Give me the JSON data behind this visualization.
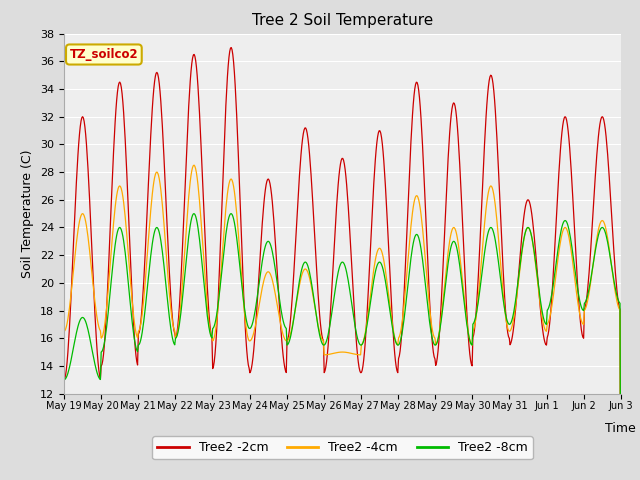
{
  "title": "Tree 2 Soil Temperature",
  "xlabel": "Time",
  "ylabel": "Soil Temperature (C)",
  "ylim": [
    12,
    38
  ],
  "yticks": [
    12,
    14,
    16,
    18,
    20,
    22,
    24,
    26,
    28,
    30,
    32,
    34,
    36,
    38
  ],
  "legend_label": "TZ_soilco2",
  "series_labels": [
    "Tree2 -2cm",
    "Tree2 -4cm",
    "Tree2 -8cm"
  ],
  "series_colors": [
    "#cc0000",
    "#ffaa00",
    "#00bb00"
  ],
  "background_color": "#dddddd",
  "plot_bg_color": "#eeeeee",
  "x_tick_labels": [
    "May 19",
    "May 20",
    "May 21",
    "May 22",
    "May 23",
    "May 24",
    "May 25",
    "May 26",
    "May 27",
    "May 28",
    "May 29",
    "May 30",
    "May 31",
    "Jun 1",
    "Jun 2",
    "Jun 3"
  ],
  "annotation_text": "TZ_soilco2",
  "annotation_color": "#cc0000",
  "annotation_bg": "#ffffcc",
  "annotation_edge": "#ccaa00",
  "n_days": 15,
  "points_per_day": 48,
  "peaks_2cm": [
    32.0,
    34.5,
    35.2,
    36.5,
    37.0,
    27.5,
    31.2,
    29.0,
    31.0,
    34.5,
    33.0,
    35.0,
    26.0,
    32.0,
    32.0
  ],
  "troughs_2cm": [
    13.0,
    14.0,
    16.3,
    16.0,
    13.8,
    13.5,
    15.8,
    13.5,
    13.5,
    14.5,
    14.0,
    16.0,
    15.5,
    16.0,
    18.0
  ],
  "peaks_4cm": [
    25.0,
    27.0,
    28.0,
    28.5,
    27.5,
    20.8,
    21.0,
    15.0,
    22.5,
    26.3,
    24.0,
    27.0,
    24.0,
    24.0,
    24.5
  ],
  "troughs_4cm": [
    16.5,
    16.0,
    16.5,
    16.0,
    15.8,
    15.8,
    15.8,
    14.8,
    15.5,
    16.0,
    15.5,
    16.5,
    16.5,
    17.0,
    18.0
  ],
  "peaks_8cm": [
    17.5,
    24.0,
    24.0,
    25.0,
    25.0,
    23.0,
    21.5,
    21.5,
    21.5,
    23.5,
    23.0,
    24.0,
    24.0,
    24.5,
    24.0
  ],
  "troughs_8cm": [
    13.0,
    15.0,
    15.5,
    16.0,
    16.7,
    16.7,
    15.5,
    15.5,
    15.5,
    15.5,
    15.5,
    17.0,
    17.0,
    18.0,
    18.5
  ]
}
